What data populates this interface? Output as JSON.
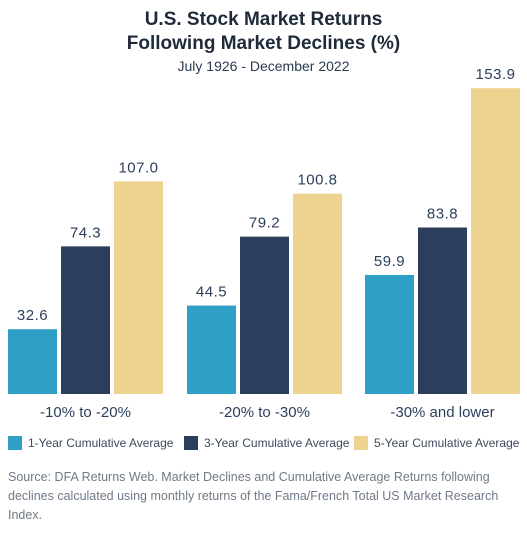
{
  "title_line1": "U.S. Stock Market Returns",
  "title_line2": "Following Market Declines (%)",
  "subtitle": "July 1926 - December 2022",
  "legend": [
    {
      "label": "1-Year Cumulative Average",
      "color": "#2f9fc6"
    },
    {
      "label": "3-Year Cumulative Average",
      "color": "#2b3f5c"
    },
    {
      "label": "5-Year Cumulative Average",
      "color": "#eed28f"
    }
  ],
  "source": "Source: DFA Returns Web. Market Declines and Cumulative Average Returns following declines calculated using monthly returns of the Fama/French Total US Market Research Index.",
  "chart_data": {
    "type": "bar",
    "categories": [
      "-10% to -20%",
      "-20% to -30%",
      "-30% and lower"
    ],
    "series": [
      {
        "name": "1-Year Cumulative Average",
        "values": [
          32.6,
          44.5,
          59.9
        ],
        "labels": [
          "32.6",
          "44.5",
          "59.9"
        ]
      },
      {
        "name": "3-Year Cumulative Average",
        "values": [
          74.3,
          79.2,
          83.8
        ],
        "labels": [
          "74.3",
          "79.2",
          "83.8"
        ]
      },
      {
        "name": "5-Year Cumulative Average",
        "values": [
          107.0,
          100.8,
          153.9
        ],
        "labels": [
          "107.0",
          "100.8",
          "153.9"
        ]
      }
    ],
    "title": "U.S. Stock Market Returns Following Market Declines (%)",
    "xlabel": "",
    "ylabel": "",
    "ylim": [
      0,
      160
    ],
    "grid": false,
    "legend_position": "bottom"
  }
}
